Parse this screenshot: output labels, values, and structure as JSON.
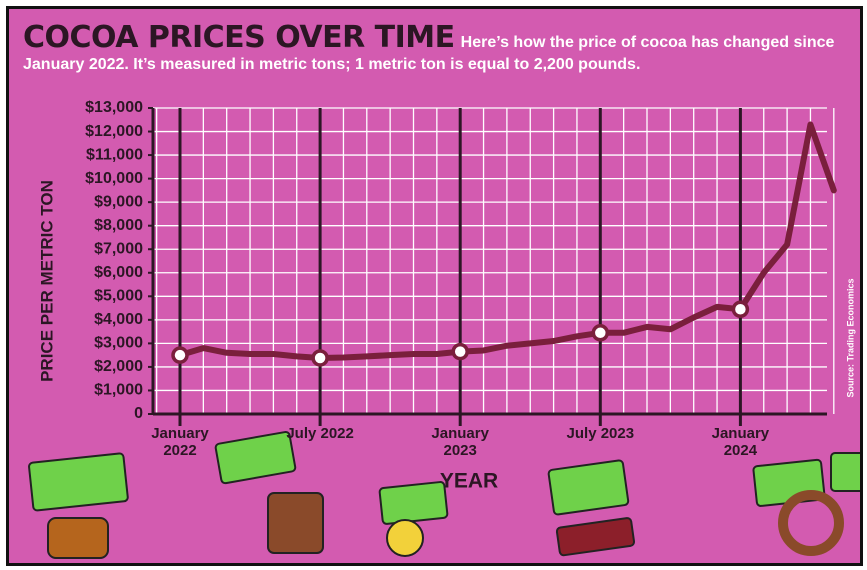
{
  "chart_data": {
    "type": "line",
    "title": "COCOA PRICES OVER TIME",
    "subtitle": "Here’s how the price of cocoa has changed since January 2022. It’s measured in metric tons; 1 metric ton is equal to 2,200 pounds.",
    "x_label": "YEAR",
    "y_label": "PRICE PER METRIC TON",
    "source": "Source: Trading Economics",
    "categories": [
      "January 2022",
      null,
      null,
      null,
      null,
      null,
      "July 2022",
      null,
      null,
      null,
      null,
      null,
      "January 2023",
      null,
      null,
      null,
      null,
      null,
      "July 2023",
      null,
      null,
      null,
      null,
      null,
      "January 2024",
      null,
      null,
      null,
      null
    ],
    "values": [
      2500,
      2800,
      2600,
      2550,
      2550,
      2450,
      2380,
      2400,
      2450,
      2500,
      2550,
      2550,
      2650,
      2700,
      2900,
      3000,
      3100,
      3300,
      3450,
      3450,
      3700,
      3600,
      4100,
      4550,
      4450,
      6000,
      7200,
      12300,
      9500
    ],
    "color": "#7a1f3c",
    "markers": true,
    "ylim": [
      0,
      13000
    ],
    "yticks": [
      0,
      {
        "value": 1000,
        "label": "$1,000"
      },
      {
        "value": 2000,
        "label": "$2,000"
      },
      {
        "value": 3000,
        "label": "$3,000"
      },
      {
        "value": 4000,
        "label": "$4,000"
      },
      {
        "value": 5000,
        "label": "$5,000"
      },
      {
        "value": 6000,
        "label": "$6,000"
      },
      {
        "value": 7000,
        "label": "$7,000"
      },
      {
        "value": 8000,
        "label": "$8,000"
      },
      {
        "value": 9000,
        "label": "$9,000"
      },
      {
        "value": 10000,
        "label": "$10,000"
      },
      {
        "value": 11000,
        "label": "$11,000"
      },
      {
        "value": 12000,
        "label": "$12,000"
      },
      {
        "value": 13000,
        "label": "$13,000"
      }
    ],
    "grid": true
  }
}
